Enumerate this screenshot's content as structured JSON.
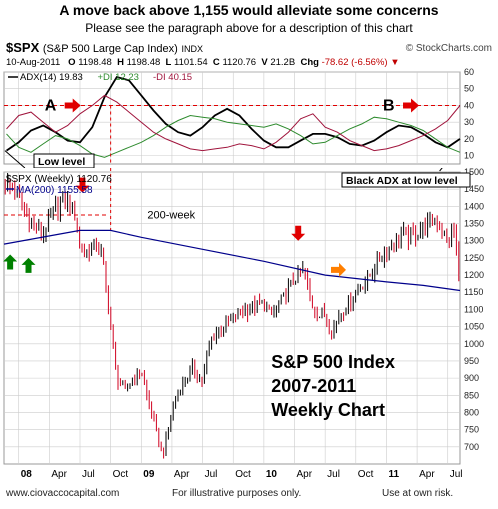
{
  "header": {
    "title": "A move back above 1,155 would alleviate some concerns",
    "subtitle": "Please see the paragraph above for a description of this chart"
  },
  "symbol_block": {
    "symbol": "$SPX",
    "description": "(S&P 500 Large Cap Index)",
    "exchange": "INDX",
    "credit": "© StockCharts.com"
  },
  "quote": {
    "date": "10-Aug-2011",
    "open_label": "O",
    "open": "1198.48",
    "high_label": "H",
    "high": "1198.48",
    "low_label": "L",
    "low": "1101.54",
    "close_label": "C",
    "close": "1120.76",
    "volume_label": "V",
    "volume": "21.2B",
    "change_label": "Chg",
    "change": "-78.62 (-6.56%)",
    "change_arrow": "▼"
  },
  "footer": {
    "website": "www.ciovaccocapital.com",
    "note": "For illustrative purposes only.",
    "disclaimer": "Use at own risk."
  },
  "colors": {
    "up_bar": "#000000",
    "down_bar": "#d0001f",
    "ma_line": "#00008b",
    "adx_line": "#000000",
    "plus_di": "#2e8b2e",
    "minus_di": "#a0143c",
    "arrow_red": "#e00000",
    "arrow_green": "#008000",
    "arrow_orange": "#ff7f00",
    "grid": "#cccccc"
  },
  "chart_data": [
    {
      "type": "line",
      "indicator": "ADX(14)",
      "legend": [
        {
          "key": "adx",
          "label": "ADX(14) 19.83",
          "color": "#000000"
        },
        {
          "key": "pdi",
          "label": "+DI 12.23",
          "color": "#2e8b2e"
        },
        {
          "key": "mdi",
          "label": "-DI 40.15",
          "color": "#a0143c"
        }
      ],
      "ylim": [
        5,
        60
      ],
      "yticks": [
        10,
        20,
        30,
        40,
        50,
        60
      ],
      "reference_level": 40,
      "annotations": [
        {
          "label": "A",
          "x": 2008.62
        },
        {
          "label": "B",
          "x": 2011.38
        },
        {
          "label": "Low level",
          "x": 2007.92
        },
        {
          "label": "Black ADX at low level",
          "x": 2011.45
        }
      ],
      "x": [
        2007.6,
        2007.7,
        2007.8,
        2007.9,
        2008.0,
        2008.1,
        2008.2,
        2008.3,
        2008.4,
        2008.5,
        2008.6,
        2008.7,
        2008.8,
        2008.9,
        2009.0,
        2009.1,
        2009.2,
        2009.3,
        2009.4,
        2009.5,
        2009.6,
        2009.7,
        2009.8,
        2009.9,
        2010.0,
        2010.1,
        2010.2,
        2010.3,
        2010.4,
        2010.5,
        2010.6,
        2010.7,
        2010.8,
        2010.9,
        2011.0,
        2011.1,
        2011.2,
        2011.3,
        2011.4,
        2011.5,
        2011.6
      ],
      "series": [
        {
          "key": "adx",
          "values": [
            21,
            17,
            14,
            13,
            18,
            25,
            28,
            24,
            19,
            18,
            27,
            45,
            57,
            55,
            46,
            37,
            29,
            24,
            22,
            27,
            34,
            38,
            34,
            26,
            19,
            15,
            15,
            19,
            23,
            23,
            21,
            17,
            16,
            19,
            24,
            28,
            27,
            23,
            18,
            15,
            20
          ]
        },
        {
          "key": "pdi",
          "values": [
            24,
            20,
            19,
            23,
            15,
            12,
            17,
            22,
            20,
            16,
            11,
            9,
            12,
            15,
            18,
            22,
            27,
            31,
            34,
            33,
            32,
            30,
            29,
            28,
            27,
            29,
            26,
            22,
            17,
            18,
            22,
            26,
            29,
            33,
            32,
            30,
            28,
            25,
            20,
            15,
            12
          ]
        },
        {
          "key": "mdi",
          "values": [
            22,
            28,
            30,
            26,
            34,
            36,
            30,
            24,
            28,
            35,
            40,
            46,
            42,
            36,
            30,
            24,
            20,
            17,
            14,
            13,
            14,
            15,
            17,
            16,
            14,
            18,
            24,
            32,
            35,
            27,
            24,
            19,
            16,
            13,
            14,
            16,
            19,
            22,
            26,
            31,
            40
          ]
        }
      ]
    },
    {
      "type": "candlestick",
      "title": "S&P 500 Index 2007-2011 Weekly Chart",
      "legend": [
        {
          "key": "price",
          "label": "$SPX (Weekly) 1120.76"
        },
        {
          "key": "ma",
          "label": "MA(200) 1155.58"
        }
      ],
      "ylim": [
        650,
        1500
      ],
      "yticks": [
        700,
        750,
        800,
        850,
        900,
        950,
        1000,
        1050,
        1100,
        1150,
        1200,
        1250,
        1300,
        1350,
        1400,
        1450,
        1500
      ],
      "xlim": [
        2007.88,
        2011.6
      ],
      "x_tick_labels": [
        {
          "label": "08",
          "x": 2008.0
        },
        {
          "label": "Apr",
          "x": 2008.25
        },
        {
          "label": "Jul",
          "x": 2008.5
        },
        {
          "label": "Oct",
          "x": 2008.75
        },
        {
          "label": "09",
          "x": 2009.0
        },
        {
          "label": "Apr",
          "x": 2009.25
        },
        {
          "label": "Jul",
          "x": 2009.5
        },
        {
          "label": "Oct",
          "x": 2009.75
        },
        {
          "label": "10",
          "x": 2010.0
        },
        {
          "label": "Apr",
          "x": 2010.25
        },
        {
          "label": "Jul",
          "x": 2010.5
        },
        {
          "label": "Oct",
          "x": 2010.75
        },
        {
          "label": "11",
          "x": 2011.0
        },
        {
          "label": "Apr",
          "x": 2011.25
        },
        {
          "label": "Jul",
          "x": 2011.5
        }
      ],
      "close_anchors": {
        "x": [
          2007.88,
          2007.97,
          2008.05,
          2008.12,
          2008.2,
          2008.28,
          2008.37,
          2008.45,
          2008.5,
          2008.55,
          2008.62,
          2008.68,
          2008.75,
          2008.8,
          2008.87,
          2008.93,
          2009.0,
          2009.05,
          2009.1,
          2009.15,
          2009.18,
          2009.25,
          2009.33,
          2009.42,
          2009.5,
          2009.55,
          2009.62,
          2009.7,
          2009.8,
          2009.9,
          2010.0,
          2010.05,
          2010.12,
          2010.2,
          2010.28,
          2010.33,
          2010.38,
          2010.45,
          2010.5,
          2010.55,
          2010.62,
          2010.68,
          2010.75,
          2010.85,
          2010.95,
          2011.05,
          2011.12,
          2011.2,
          2011.3,
          2011.37,
          2011.45,
          2011.5,
          2011.55,
          2011.58,
          2011.6
        ],
        "values": [
          1470,
          1445,
          1380,
          1340,
          1320,
          1380,
          1420,
          1390,
          1280,
          1260,
          1290,
          1260,
          1050,
          900,
          860,
          900,
          920,
          840,
          780,
          700,
          680,
          810,
          880,
          930,
          890,
          990,
          1040,
          1060,
          1090,
          1105,
          1120,
          1080,
          1110,
          1160,
          1200,
          1215,
          1120,
          1080,
          1090,
          1030,
          1090,
          1110,
          1150,
          1190,
          1250,
          1290,
          1320,
          1310,
          1340,
          1355,
          1340,
          1295,
          1330,
          1250,
          1120
        ]
      },
      "ma_200": {
        "x": [
          2007.88,
          2008.5,
          2008.75,
          2009.0,
          2009.5,
          2010.0,
          2010.5,
          2011.0,
          2011.3,
          2011.6
        ],
        "values": [
          1290,
          1330,
          1330,
          1310,
          1275,
          1240,
          1200,
          1180,
          1170,
          1155
        ]
      },
      "annotations": [
        {
          "label": "200-week",
          "x": 2009.05,
          "y": 1365
        },
        {
          "label": "S&P 500 Index",
          "x": 2010.06,
          "y": 930
        },
        {
          "label": "2007-2011",
          "x": 2010.06,
          "y": 860
        },
        {
          "label": "Weekly Chart",
          "x": 2010.06,
          "y": 790
        }
      ],
      "arrows": [
        {
          "color": "green",
          "direction": "up",
          "x": 2007.93,
          "y": 1260
        },
        {
          "color": "green",
          "direction": "up",
          "x": 2008.08,
          "y": 1250
        },
        {
          "color": "red",
          "direction": "down",
          "x": 2008.52,
          "y": 1440
        },
        {
          "color": "red",
          "direction": "down",
          "x": 2010.28,
          "y": 1300
        },
        {
          "color": "orange",
          "direction": "right",
          "x": 2010.67,
          "y": 1215
        }
      ],
      "reference_lines": [
        {
          "type": "horizontal-dashed",
          "y": 1375
        },
        {
          "type": "vertical-dashed",
          "x": 2008.75
        }
      ]
    }
  ]
}
